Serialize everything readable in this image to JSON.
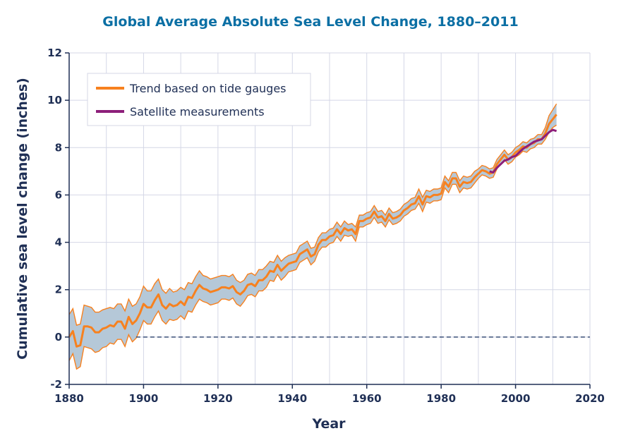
{
  "chart_data": {
    "type": "line",
    "title": "Global Average Absolute Sea Level Change, 1880–2011",
    "xlabel": "Year",
    "ylabel": "Cumulative sea level change (inches)",
    "xlim": [
      1880,
      2020
    ],
    "ylim": [
      -2,
      12
    ],
    "xticks": [
      1880,
      1900,
      1920,
      1940,
      1960,
      1980,
      2000,
      2020
    ],
    "yticks": [
      -2,
      0,
      2,
      4,
      6,
      8,
      10,
      12
    ],
    "grid": true,
    "zero_reference_line": true,
    "legend_position": "top-left",
    "colors": {
      "trend": "#f7811f",
      "uncertainty_band": "#b5c8d8",
      "satellite": "#8d1f7a",
      "grid": "#d4d7e6",
      "axis_text": "#1f2f55",
      "title": "#0b6fa4"
    },
    "series": [
      {
        "name": "Trend based on tide gauges",
        "x": [
          1880,
          1881,
          1882,
          1883,
          1884,
          1885,
          1886,
          1887,
          1888,
          1889,
          1890,
          1891,
          1892,
          1893,
          1894,
          1895,
          1896,
          1897,
          1898,
          1899,
          1900,
          1901,
          1902,
          1903,
          1904,
          1905,
          1906,
          1907,
          1908,
          1909,
          1910,
          1911,
          1912,
          1913,
          1914,
          1915,
          1916,
          1917,
          1918,
          1919,
          1920,
          1921,
          1922,
          1923,
          1924,
          1925,
          1926,
          1927,
          1928,
          1929,
          1930,
          1931,
          1932,
          1933,
          1934,
          1935,
          1936,
          1937,
          1938,
          1939,
          1940,
          1941,
          1942,
          1943,
          1944,
          1945,
          1946,
          1947,
          1948,
          1949,
          1950,
          1951,
          1952,
          1953,
          1954,
          1955,
          1956,
          1957,
          1958,
          1959,
          1960,
          1961,
          1962,
          1963,
          1964,
          1965,
          1966,
          1967,
          1968,
          1969,
          1970,
          1971,
          1972,
          1973,
          1974,
          1975,
          1976,
          1977,
          1978,
          1979,
          1980,
          1981,
          1982,
          1983,
          1984,
          1985,
          1986,
          1987,
          1988,
          1989,
          1990,
          1991,
          1992,
          1993,
          1994,
          1995,
          1996,
          1997,
          1998,
          1999,
          2000,
          2001,
          2002,
          2003,
          2004,
          2005,
          2006,
          2007,
          2008,
          2009,
          2010,
          2011
        ],
        "values": [
          0.0,
          0.25,
          -0.4,
          -0.35,
          0.45,
          0.45,
          0.4,
          0.2,
          0.2,
          0.35,
          0.4,
          0.5,
          0.45,
          0.65,
          0.65,
          0.35,
          0.85,
          0.55,
          0.7,
          1.0,
          1.4,
          1.25,
          1.25,
          1.55,
          1.8,
          1.35,
          1.2,
          1.4,
          1.3,
          1.35,
          1.5,
          1.35,
          1.7,
          1.65,
          1.95,
          2.2,
          2.05,
          2.0,
          1.9,
          1.95,
          2.0,
          2.1,
          2.1,
          2.05,
          2.15,
          1.9,
          1.8,
          1.95,
          2.2,
          2.25,
          2.15,
          2.4,
          2.4,
          2.55,
          2.8,
          2.75,
          3.05,
          2.8,
          2.95,
          3.1,
          3.15,
          3.2,
          3.5,
          3.6,
          3.7,
          3.4,
          3.5,
          3.9,
          4.1,
          4.1,
          4.25,
          4.3,
          4.55,
          4.35,
          4.6,
          4.5,
          4.55,
          4.35,
          4.9,
          4.9,
          5.0,
          5.05,
          5.3,
          5.05,
          5.1,
          4.9,
          5.2,
          5.0,
          5.05,
          5.15,
          5.35,
          5.45,
          5.6,
          5.65,
          5.95,
          5.6,
          5.95,
          5.9,
          6.0,
          6.0,
          6.05,
          6.55,
          6.35,
          6.7,
          6.7,
          6.35,
          6.55,
          6.5,
          6.55,
          6.75,
          6.9,
          7.05,
          7.0,
          6.9,
          6.95,
          7.3,
          7.5,
          7.7,
          7.5,
          7.6,
          7.8,
          7.9,
          8.05,
          8.0,
          8.15,
          8.2,
          8.35,
          8.35,
          8.6,
          9.0,
          9.2,
          9.4
        ],
        "uncertainty": {
          "upper": [
            0.95,
            1.2,
            0.5,
            0.55,
            1.35,
            1.3,
            1.25,
            1.05,
            1.05,
            1.15,
            1.2,
            1.25,
            1.2,
            1.4,
            1.4,
            1.1,
            1.6,
            1.3,
            1.4,
            1.7,
            2.15,
            1.95,
            1.95,
            2.25,
            2.45,
            2.0,
            1.85,
            2.05,
            1.9,
            1.95,
            2.1,
            2.0,
            2.3,
            2.25,
            2.55,
            2.8,
            2.6,
            2.55,
            2.45,
            2.5,
            2.55,
            2.6,
            2.6,
            2.55,
            2.65,
            2.4,
            2.3,
            2.4,
            2.65,
            2.7,
            2.6,
            2.85,
            2.85,
            3.0,
            3.2,
            3.15,
            3.45,
            3.2,
            3.35,
            3.45,
            3.5,
            3.55,
            3.85,
            3.95,
            4.05,
            3.75,
            3.8,
            4.2,
            4.4,
            4.4,
            4.55,
            4.6,
            4.85,
            4.65,
            4.9,
            4.75,
            4.8,
            4.65,
            5.15,
            5.15,
            5.25,
            5.3,
            5.55,
            5.3,
            5.35,
            5.15,
            5.45,
            5.25,
            5.3,
            5.4,
            5.6,
            5.7,
            5.85,
            5.9,
            6.25,
            5.9,
            6.2,
            6.15,
            6.25,
            6.25,
            6.3,
            6.8,
            6.6,
            6.95,
            6.95,
            6.6,
            6.8,
            6.75,
            6.8,
            7.0,
            7.1,
            7.25,
            7.2,
            7.1,
            7.15,
            7.5,
            7.7,
            7.9,
            7.7,
            7.8,
            8.0,
            8.1,
            8.25,
            8.2,
            8.35,
            8.4,
            8.55,
            8.55,
            8.85,
            9.35,
            9.6,
            9.85
          ],
          "lower": [
            -1.0,
            -0.7,
            -1.35,
            -1.25,
            -0.4,
            -0.45,
            -0.5,
            -0.65,
            -0.6,
            -0.45,
            -0.4,
            -0.25,
            -0.3,
            -0.1,
            -0.1,
            -0.4,
            0.1,
            -0.2,
            -0.05,
            0.3,
            0.7,
            0.55,
            0.55,
            0.85,
            1.1,
            0.7,
            0.55,
            0.75,
            0.7,
            0.75,
            0.9,
            0.75,
            1.1,
            1.05,
            1.35,
            1.6,
            1.5,
            1.45,
            1.35,
            1.4,
            1.45,
            1.6,
            1.6,
            1.55,
            1.65,
            1.4,
            1.3,
            1.5,
            1.75,
            1.8,
            1.7,
            1.95,
            1.95,
            2.1,
            2.4,
            2.35,
            2.65,
            2.4,
            2.55,
            2.75,
            2.8,
            2.85,
            3.15,
            3.25,
            3.35,
            3.05,
            3.2,
            3.6,
            3.8,
            3.8,
            3.95,
            4.0,
            4.25,
            4.05,
            4.3,
            4.25,
            4.3,
            4.05,
            4.65,
            4.65,
            4.75,
            4.8,
            5.05,
            4.8,
            4.85,
            4.65,
            4.95,
            4.75,
            4.8,
            4.9,
            5.1,
            5.2,
            5.35,
            5.4,
            5.65,
            5.3,
            5.7,
            5.65,
            5.75,
            5.75,
            5.8,
            6.3,
            6.1,
            6.45,
            6.45,
            6.1,
            6.3,
            6.25,
            6.3,
            6.5,
            6.7,
            6.85,
            6.8,
            6.7,
            6.75,
            7.1,
            7.3,
            7.5,
            7.3,
            7.4,
            7.6,
            7.7,
            7.85,
            7.8,
            7.95,
            8.0,
            8.15,
            8.15,
            8.35,
            8.65,
            8.85,
            8.95
          ]
        }
      },
      {
        "name": "Satellite measurements",
        "x": [
          1993,
          1994,
          1995,
          1996,
          1997,
          1998,
          1999,
          2000,
          2001,
          2002,
          2003,
          2004,
          2005,
          2006,
          2007,
          2008,
          2009,
          2010,
          2011
        ],
        "values": [
          7.0,
          6.95,
          7.15,
          7.3,
          7.45,
          7.5,
          7.6,
          7.65,
          7.8,
          7.95,
          8.05,
          8.15,
          8.25,
          8.3,
          8.35,
          8.5,
          8.65,
          8.75,
          8.7
        ]
      }
    ]
  }
}
